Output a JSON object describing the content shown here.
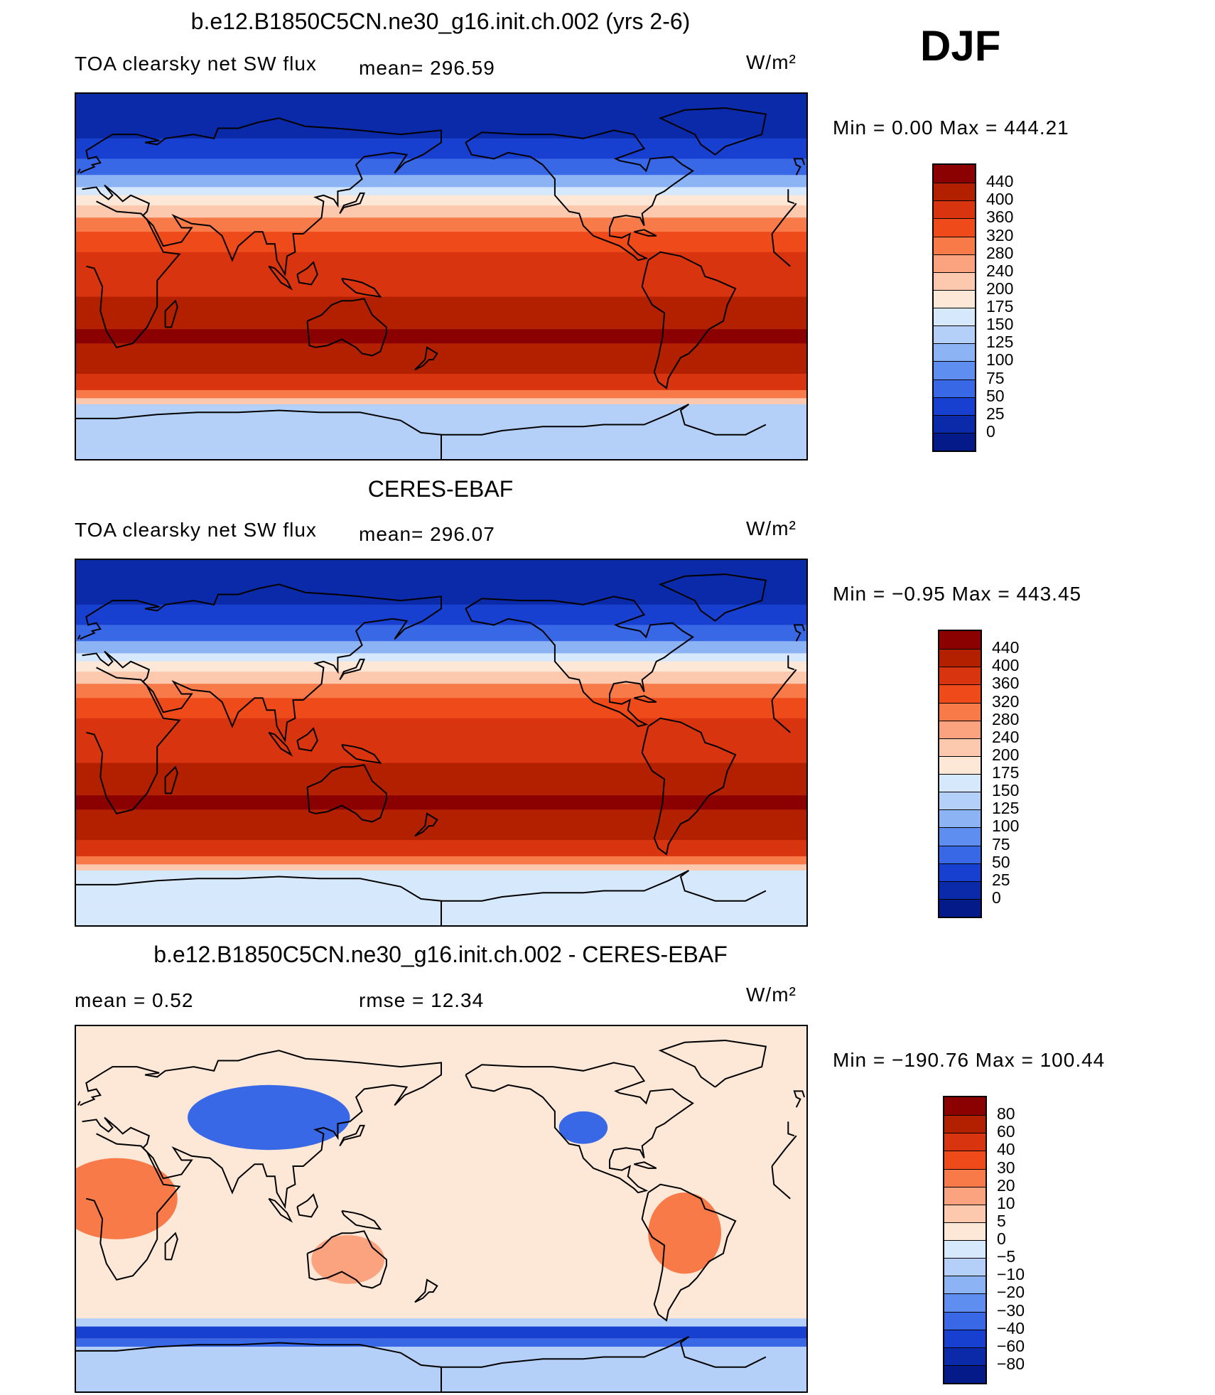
{
  "season": "DJF",
  "panels": [
    {
      "title": "b.e12.B1850C5CN.ne30_g16.init.ch.002 (yrs 2-6)",
      "field": "TOA clearsky net SW flux",
      "stat_left": "mean= 296.59",
      "stat_right": "",
      "units": "W/m²",
      "minmax": "Min =    0.00 Max = 444.21",
      "kind": "abs"
    },
    {
      "title": "CERES-EBAF",
      "field": "TOA clearsky net SW flux",
      "stat_left": "mean= 296.07",
      "stat_right": "",
      "units": "W/m²",
      "minmax": "Min =  −0.95 Max = 443.45",
      "kind": "abs"
    },
    {
      "title": "b.e12.B1850C5CN.ne30_g16.init.ch.002 - CERES-EBAF",
      "field": "",
      "stat_left": "mean =    0.52",
      "stat_right": "rmse =   12.34",
      "units": "W/m²",
      "minmax": "Min = −190.76 Max = 100.44",
      "kind": "diff"
    }
  ],
  "colorbars": {
    "abs": {
      "labels": [
        "440",
        "400",
        "360",
        "320",
        "280",
        "240",
        "200",
        "175",
        "150",
        "125",
        "100",
        "75",
        "50",
        "25",
        "0"
      ],
      "colors": [
        "#8b0000",
        "#b22000",
        "#d93410",
        "#ef4a1a",
        "#f87a48",
        "#fba27e",
        "#fcc8ae",
        "#fde8d8",
        "#d6e8fb",
        "#b4d0f8",
        "#8cb4f4",
        "#5e8ef0",
        "#3868e6",
        "#1840d0",
        "#0a2aaa",
        "#041a88"
      ]
    },
    "diff": {
      "labels": [
        "80",
        "60",
        "40",
        "30",
        "20",
        "10",
        "5",
        "0",
        "−5",
        "−10",
        "−20",
        "−30",
        "−40",
        "−60",
        "−80"
      ],
      "colors": [
        "#8b0000",
        "#b22000",
        "#d93410",
        "#ef4a1a",
        "#f87a48",
        "#fba27e",
        "#fcc8ae",
        "#fde8d8",
        "#d6e8fb",
        "#b4d0f8",
        "#8cb4f4",
        "#5e8ef0",
        "#3868e6",
        "#1840d0",
        "#0a2aaa",
        "#041a88"
      ]
    }
  }
}
